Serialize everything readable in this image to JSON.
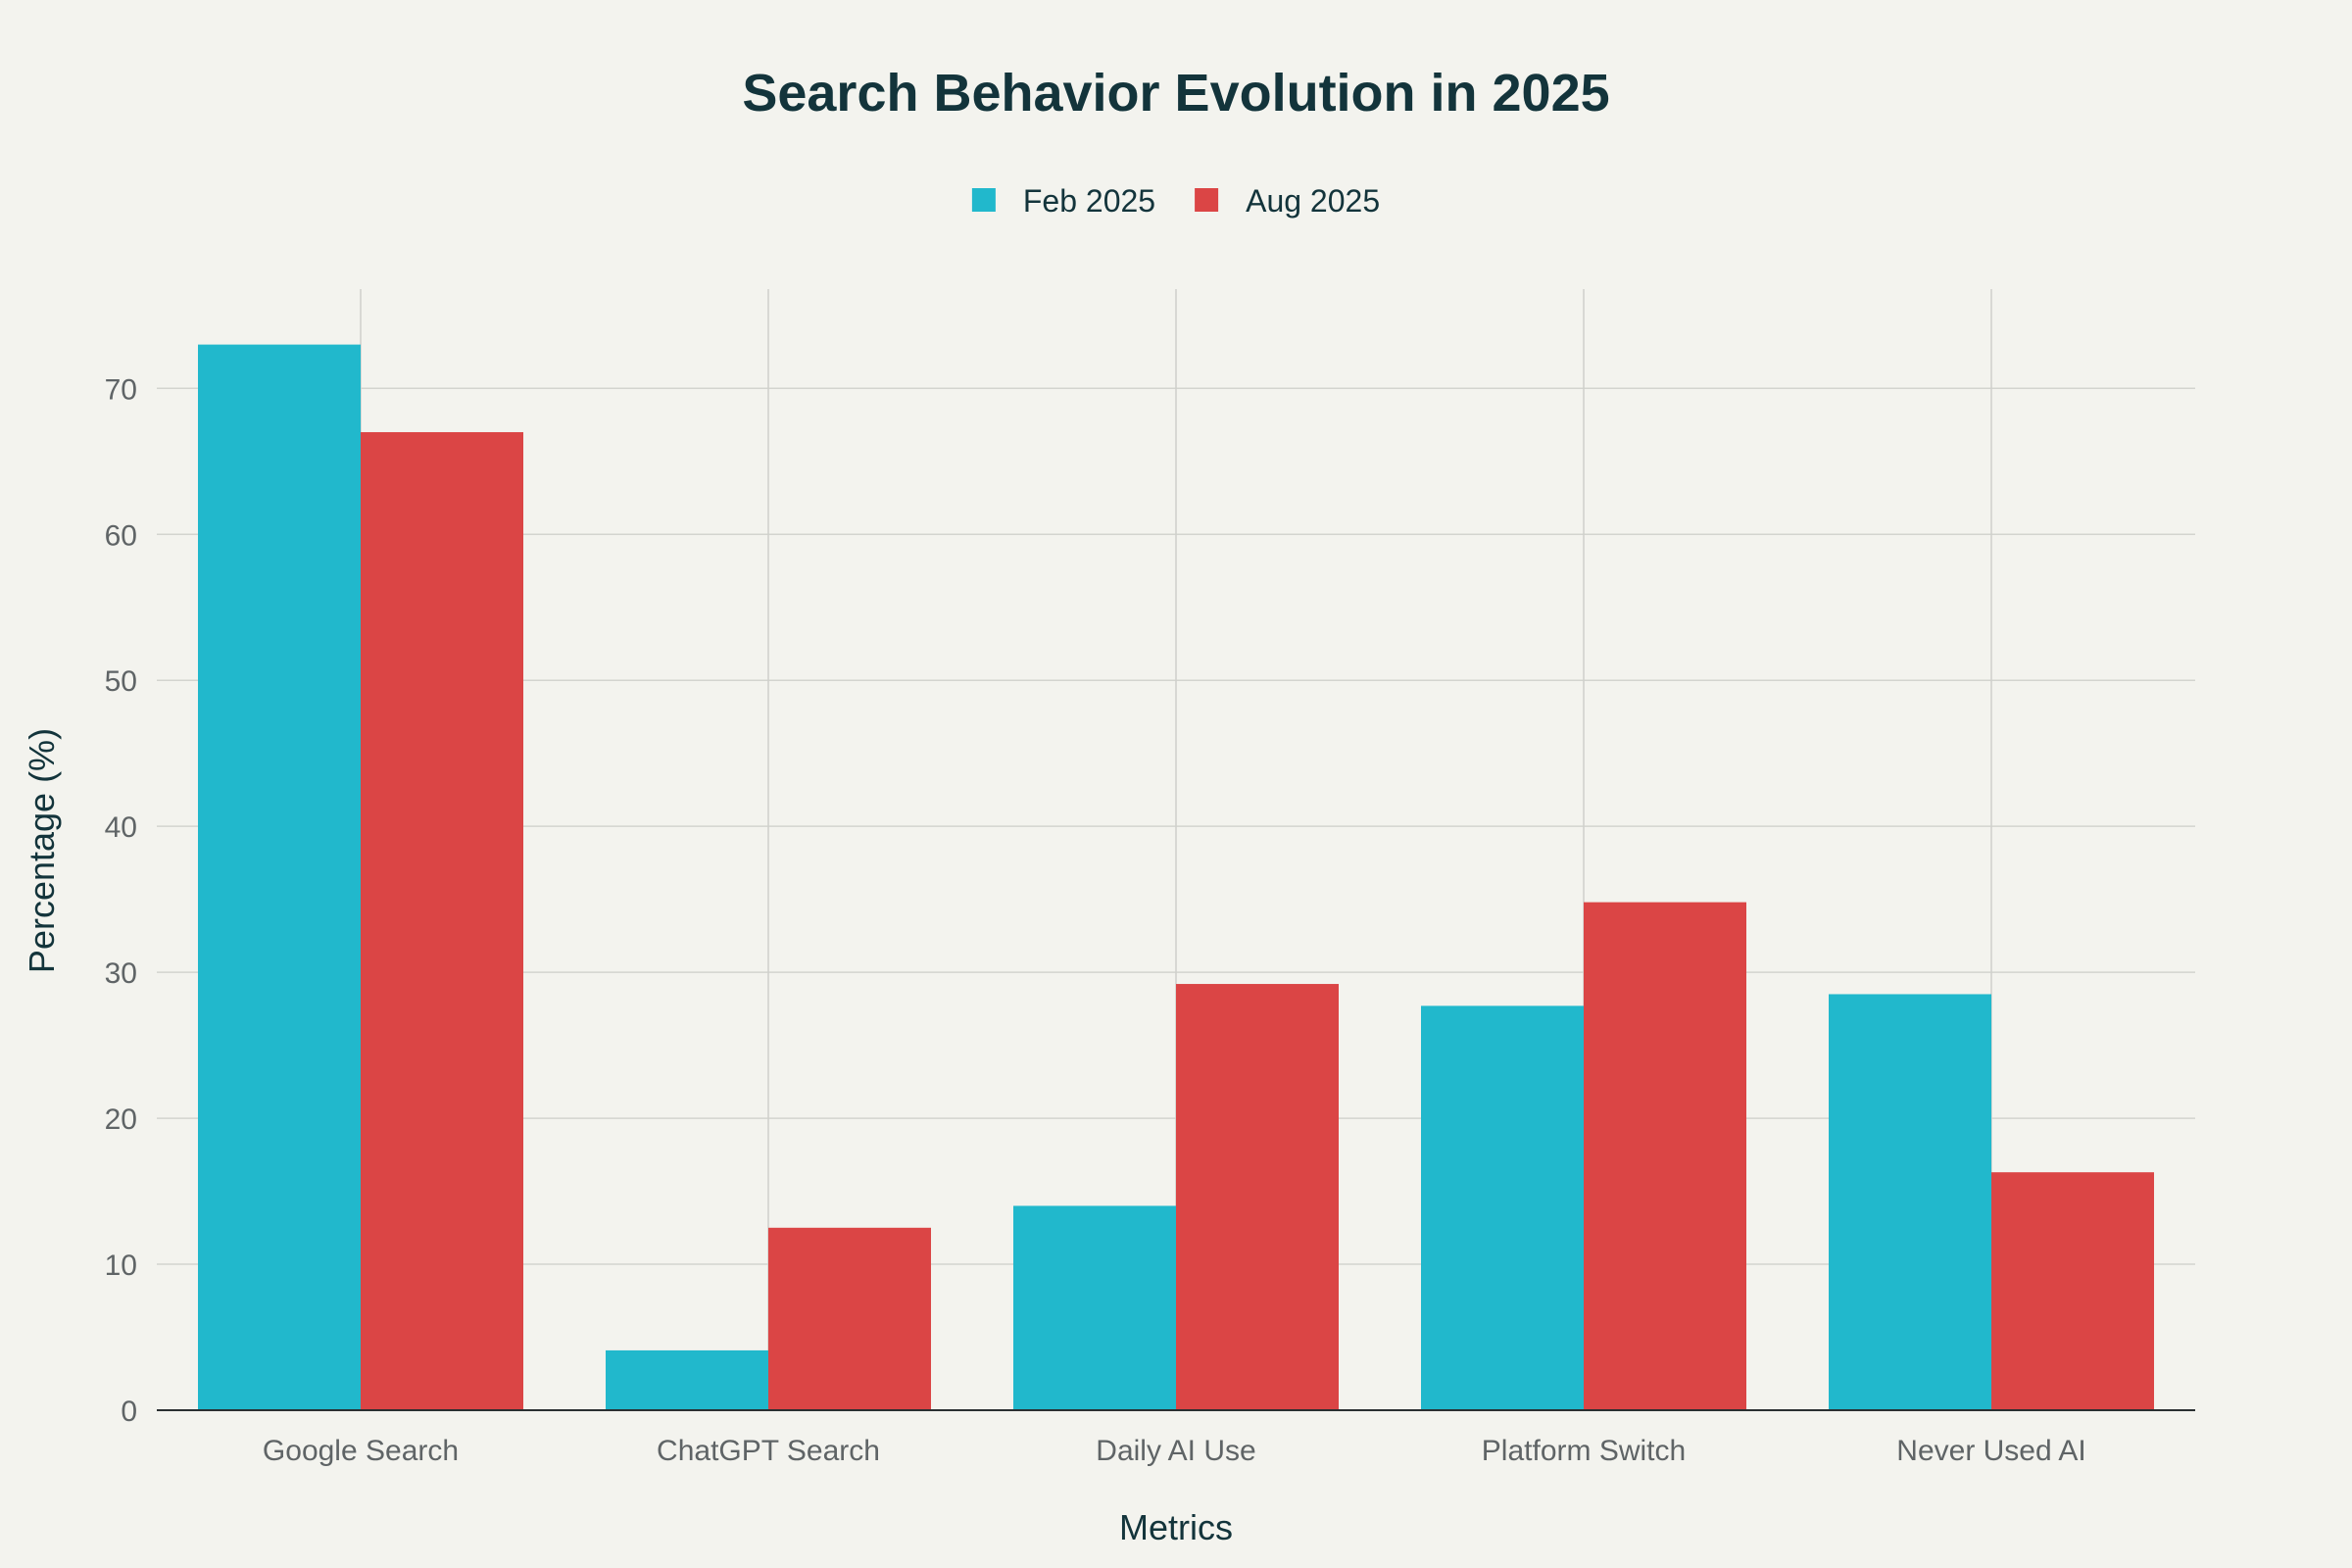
{
  "chart_data": {
    "type": "bar",
    "title": "Search Behavior Evolution in 2025",
    "xlabel": "Metrics",
    "ylabel": "Percentage (%)",
    "categories": [
      "Google Search",
      "ChatGPT Search",
      "Daily AI Use",
      "Platform Switch",
      "Never Used AI"
    ],
    "series": [
      {
        "name": "Feb 2025",
        "color": "#21b8cc",
        "values": [
          73,
          4.1,
          14,
          27.7,
          28.5
        ]
      },
      {
        "name": "Aug 2025",
        "color": "#db4545",
        "values": [
          67,
          12.5,
          29.2,
          34.8,
          16.3
        ]
      }
    ],
    "ylim": [
      0,
      76.8
    ],
    "yticks": [
      0,
      10,
      20,
      30,
      40,
      50,
      60,
      70
    ],
    "grid": true,
    "legend": "top-center"
  }
}
